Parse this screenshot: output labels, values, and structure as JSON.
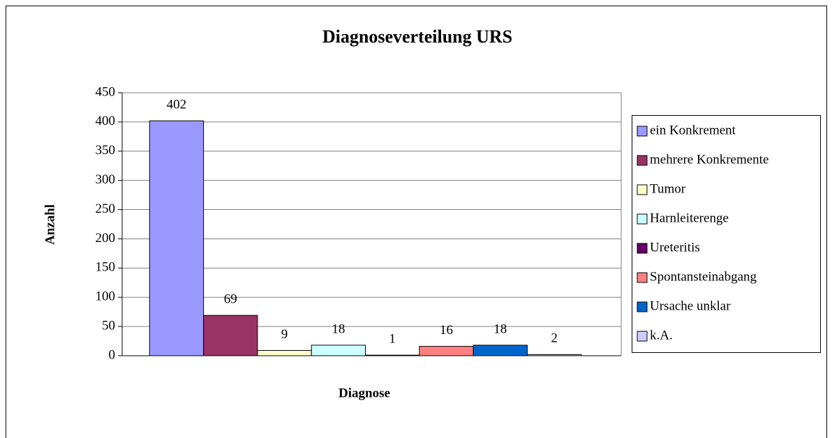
{
  "chart_data": {
    "type": "bar",
    "title": "Diagnoseverteilung URS",
    "x_label": "Diagnose",
    "y_label": "Anzahl",
    "categories": [
      null
    ],
    "series": [
      {
        "name": "ein  Konkrement",
        "color": "#9999ff",
        "values": [
          402
        ]
      },
      {
        "name": "mehrere Konkremente",
        "color": "#993366",
        "values": [
          69
        ]
      },
      {
        "name": "Tumor",
        "color": "#ffffcc",
        "values": [
          9
        ]
      },
      {
        "name": "Harnleiterenge",
        "color": "#ccffff",
        "values": [
          18
        ]
      },
      {
        "name": "Ureteritis",
        "color": "#660066",
        "values": [
          1
        ]
      },
      {
        "name": "Spontansteinabgang",
        "color": "#ff8080",
        "values": [
          16
        ]
      },
      {
        "name": "Ursache unklar",
        "color": "#0066cc",
        "values": [
          18
        ]
      },
      {
        "name": "k.A.",
        "color": "#ccccff",
        "values": [
          2
        ]
      }
    ],
    "ylim": [
      0,
      450
    ],
    "yticks": [
      0,
      50,
      100,
      150,
      200,
      250,
      300,
      350,
      400,
      450
    ],
    "grid": true,
    "legend": "right"
  }
}
